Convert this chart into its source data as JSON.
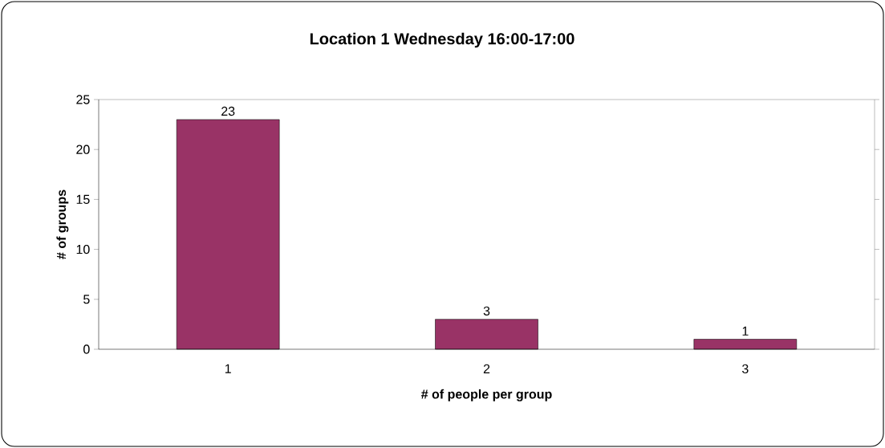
{
  "chart_data": {
    "type": "bar",
    "title": "Location 1 Wednesday 16:00-17:00",
    "xlabel": "# of people per group",
    "ylabel": "# of groups",
    "categories": [
      "1",
      "2",
      "3"
    ],
    "values": [
      23,
      3,
      1
    ],
    "color": "#993366",
    "ylim": [
      0,
      25
    ],
    "yticks": [
      0,
      5,
      10,
      15,
      20,
      25
    ],
    "grid": false,
    "data_labels": true
  }
}
